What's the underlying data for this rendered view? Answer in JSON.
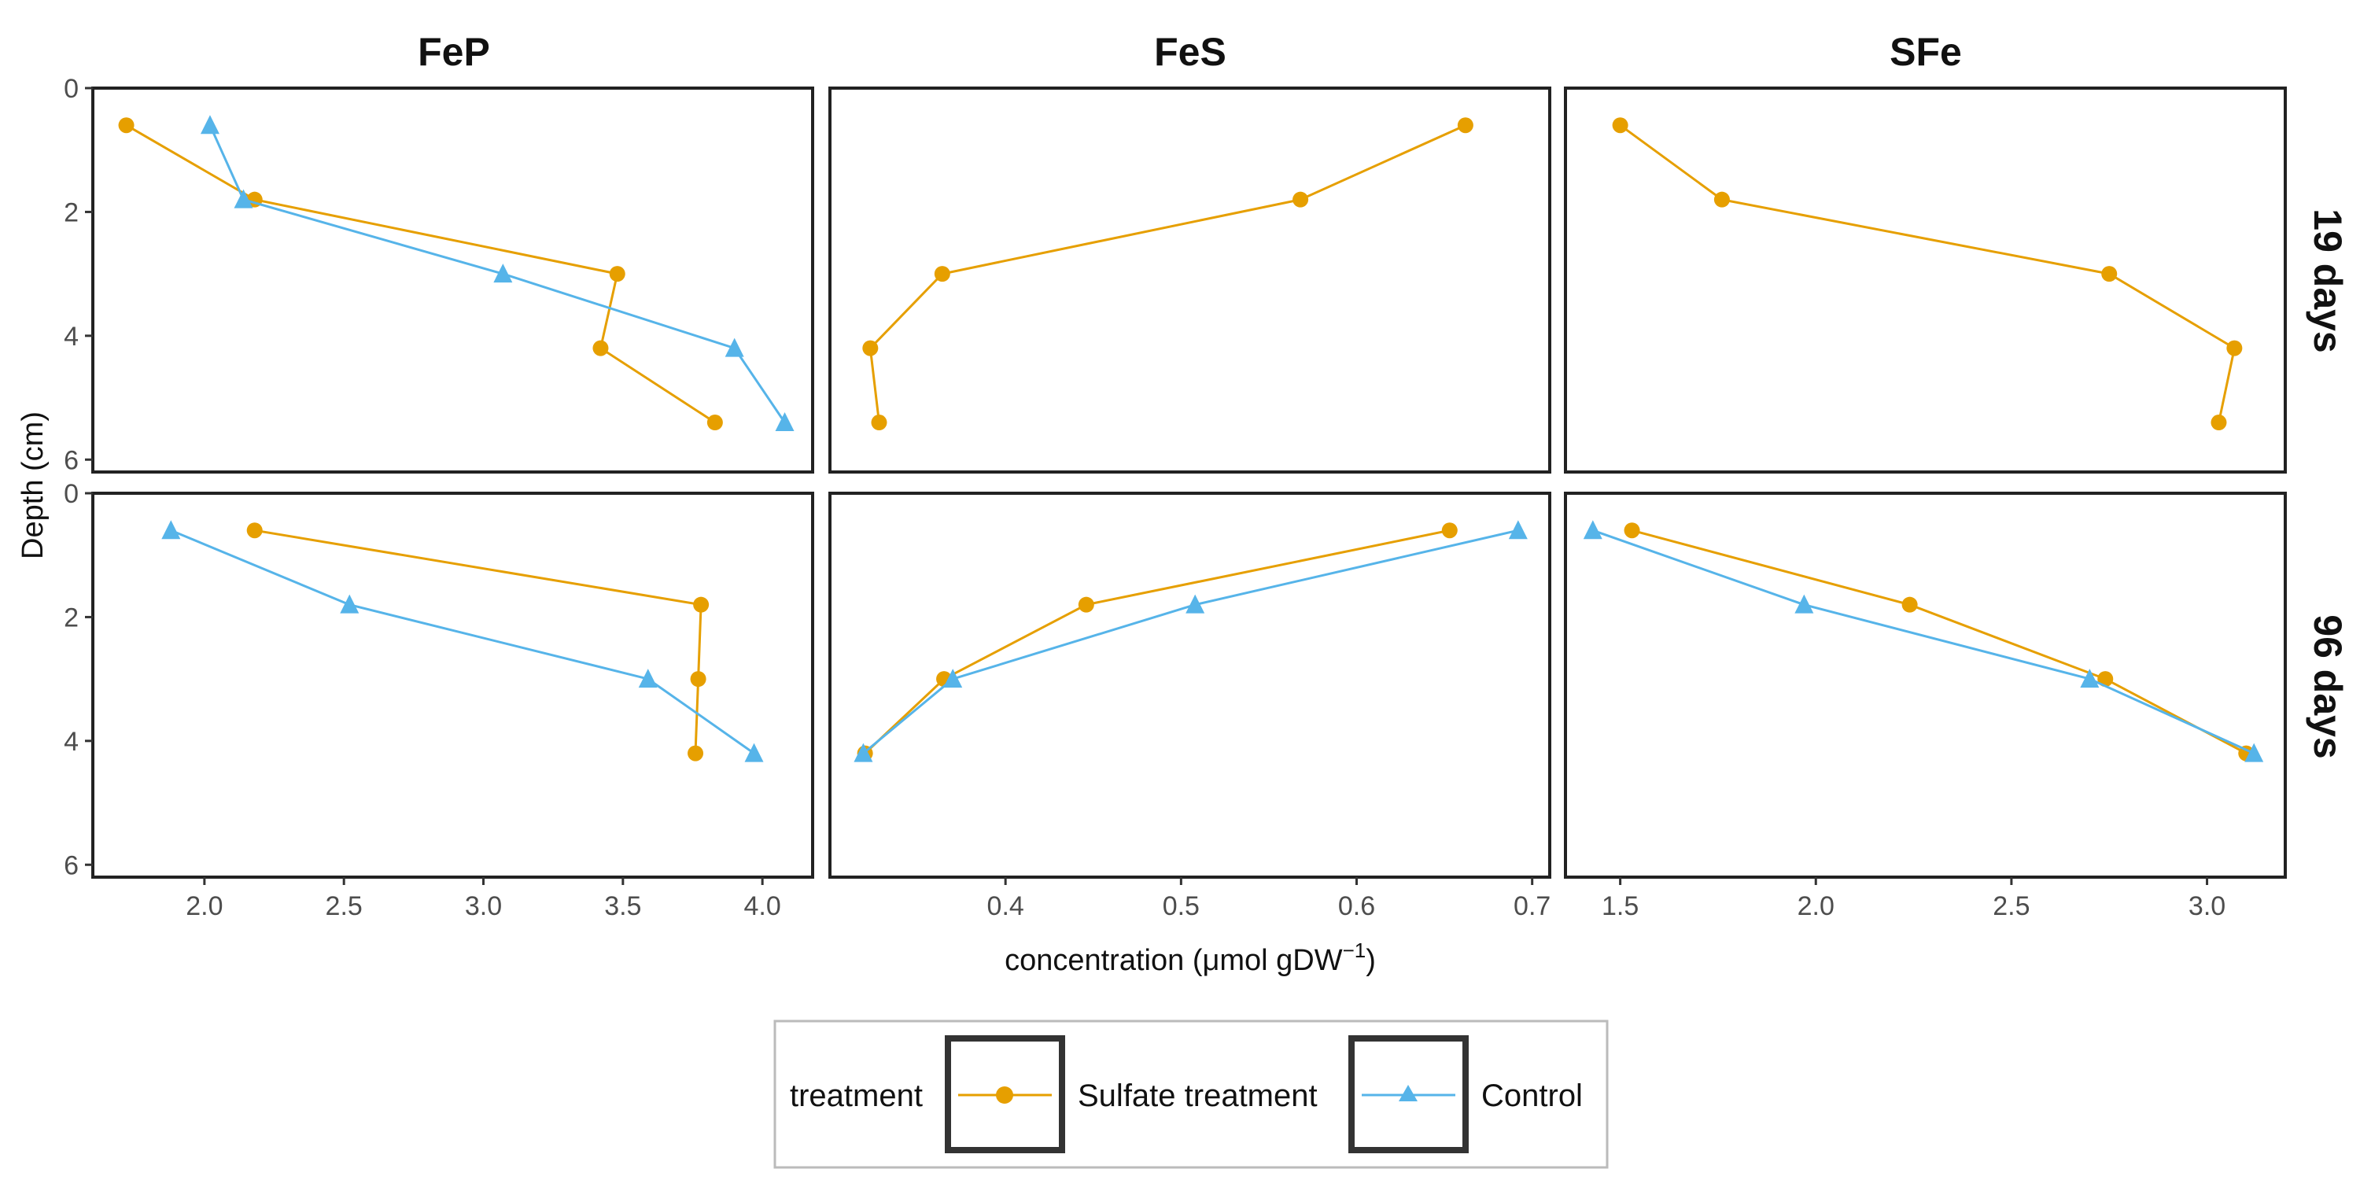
{
  "chart_data": {
    "type": "line",
    "xlabel": "concentration",
    "xlabel_unit": "(μmol gDW",
    "xlabel_superscript": "−1",
    "xlabel_close": ")",
    "ylabel": "Depth (cm)",
    "y_reversed": true,
    "ylim": [
      0,
      6.2
    ],
    "y_ticks": [
      0,
      2,
      4,
      6
    ],
    "columns": [
      {
        "label": "FeP",
        "xlim": [
          1.6,
          4.18
        ],
        "x_ticks": [
          2.0,
          2.5,
          3.0,
          3.5,
          4.0
        ]
      },
      {
        "label": "FeS",
        "xlim": [
          0.3,
          0.71
        ],
        "x_ticks": [
          0.4,
          0.5,
          0.6,
          0.7
        ]
      },
      {
        "label": "SFe",
        "xlim": [
          1.36,
          3.2
        ],
        "x_ticks": [
          1.5,
          2.0,
          2.5,
          3.0
        ]
      }
    ],
    "rows": [
      {
        "label": "19 days"
      },
      {
        "label": "96 days"
      }
    ],
    "legend": {
      "title": "treatment",
      "placement": "bottom",
      "items": [
        "Sulfate treatment",
        "Control"
      ]
    },
    "series_colors": {
      "Sulfate treatment": "#E69F00",
      "Control": "#56B4E9"
    },
    "series_markers": {
      "Sulfate treatment": "circle",
      "Control": "triangle"
    },
    "panels": [
      {
        "row": 0,
        "col": 0,
        "series": [
          {
            "name": "Sulfate treatment",
            "points": [
              [
                1.72,
                0.6
              ],
              [
                2.18,
                1.8
              ],
              [
                3.48,
                3.0
              ],
              [
                3.42,
                4.2
              ],
              [
                3.83,
                5.4
              ]
            ]
          },
          {
            "name": "Control",
            "points": [
              [
                2.02,
                0.6
              ],
              [
                2.14,
                1.8
              ],
              [
                3.07,
                3.0
              ],
              [
                3.9,
                4.2
              ],
              [
                4.08,
                5.4
              ]
            ]
          }
        ]
      },
      {
        "row": 0,
        "col": 1,
        "series": [
          {
            "name": "Sulfate treatment",
            "points": [
              [
                0.662,
                0.6
              ],
              [
                0.568,
                1.8
              ],
              [
                0.364,
                3.0
              ],
              [
                0.323,
                4.2
              ],
              [
                0.328,
                5.4
              ]
            ]
          }
        ]
      },
      {
        "row": 0,
        "col": 2,
        "series": [
          {
            "name": "Sulfate treatment",
            "points": [
              [
                1.5,
                0.6
              ],
              [
                1.76,
                1.8
              ],
              [
                2.75,
                3.0
              ],
              [
                3.07,
                4.2
              ],
              [
                3.03,
                5.4
              ]
            ]
          }
        ]
      },
      {
        "row": 1,
        "col": 0,
        "series": [
          {
            "name": "Sulfate treatment",
            "points": [
              [
                2.18,
                0.6
              ],
              [
                3.78,
                1.8
              ],
              [
                3.77,
                3.0
              ],
              [
                3.76,
                4.2
              ]
            ]
          },
          {
            "name": "Control",
            "points": [
              [
                1.88,
                0.6
              ],
              [
                2.52,
                1.8
              ],
              [
                3.59,
                3.0
              ],
              [
                3.97,
                4.2
              ]
            ]
          }
        ]
      },
      {
        "row": 1,
        "col": 1,
        "series": [
          {
            "name": "Sulfate treatment",
            "points": [
              [
                0.653,
                0.6
              ],
              [
                0.446,
                1.8
              ],
              [
                0.365,
                3.0
              ],
              [
                0.32,
                4.2
              ]
            ]
          },
          {
            "name": "Control",
            "points": [
              [
                0.692,
                0.6
              ],
              [
                0.508,
                1.8
              ],
              [
                0.37,
                3.0
              ],
              [
                0.319,
                4.2
              ]
            ]
          }
        ]
      },
      {
        "row": 1,
        "col": 2,
        "series": [
          {
            "name": "Sulfate treatment",
            "points": [
              [
                1.53,
                0.6
              ],
              [
                2.24,
                1.8
              ],
              [
                2.74,
                3.0
              ],
              [
                3.1,
                4.2
              ]
            ]
          },
          {
            "name": "Control",
            "points": [
              [
                1.43,
                0.6
              ],
              [
                1.97,
                1.8
              ],
              [
                2.7,
                3.0
              ],
              [
                3.12,
                4.2
              ]
            ]
          }
        ]
      }
    ]
  }
}
